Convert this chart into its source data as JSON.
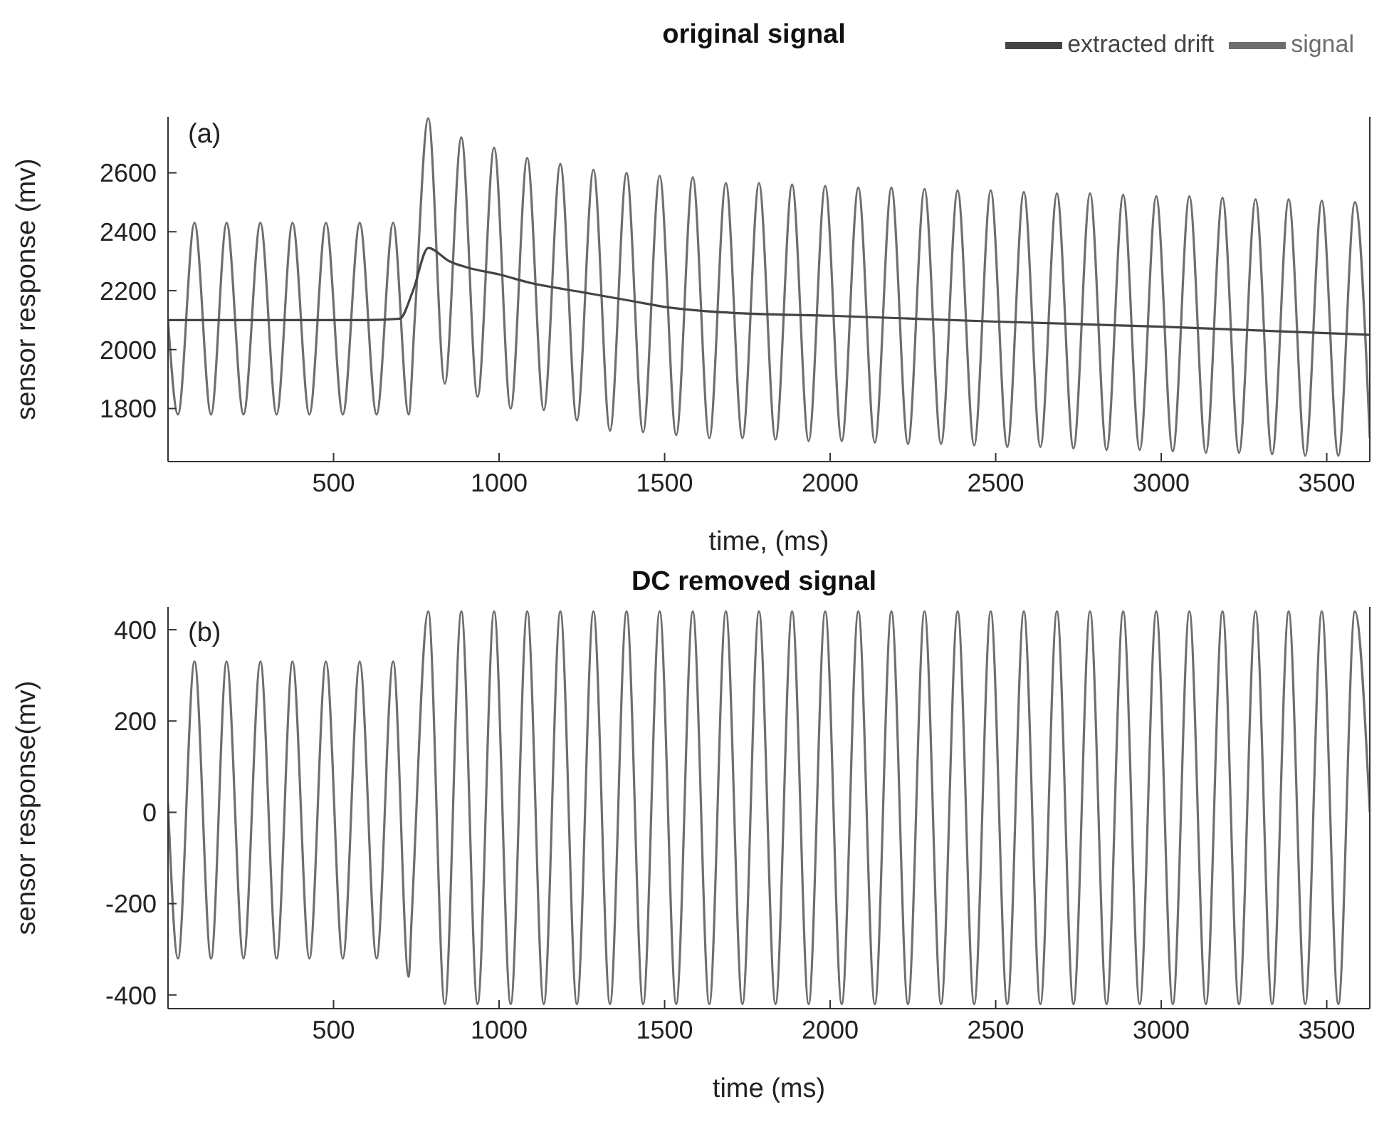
{
  "chart_data": [
    {
      "type": "line",
      "title": "original signal",
      "xlabel": "time, (ms)",
      "ylabel": "sensor response (mv)",
      "annotations": [
        "(a)"
      ],
      "xlim": [
        0,
        3630
      ],
      "xticks": [
        500,
        1000,
        1500,
        2000,
        2500,
        3000,
        3500
      ],
      "ylim": [
        1620,
        2790
      ],
      "yticks": [
        1800,
        2000,
        2200,
        2400,
        2600
      ],
      "legend": "top right",
      "marker": "none",
      "line_style": "solid",
      "series": [
        {
          "name": "signal",
          "color": "#6e6e6e",
          "x": [
            0,
            30,
            80,
            130,
            177,
            228,
            279,
            328,
            376,
            427,
            477,
            528,
            579,
            630,
            680,
            727,
            745,
            786,
            836,
            886,
            935,
            985,
            1035,
            1085,
            1135,
            1185,
            1235,
            1285,
            1335,
            1385,
            1435,
            1485,
            1535,
            1585,
            1635,
            1685,
            1735,
            1785,
            1835,
            1885,
            1935,
            1985,
            2035,
            2085,
            2135,
            2185,
            2235,
            2285,
            2335,
            2385,
            2435,
            2485,
            2535,
            2585,
            2635,
            2685,
            2735,
            2785,
            2835,
            2885,
            2935,
            2985,
            3035,
            3085,
            3135,
            3185,
            3235,
            3285,
            3335,
            3385,
            3435,
            3485,
            3535,
            3585,
            3630
          ],
          "values": [
            2100,
            1780,
            2430,
            1780,
            2430,
            1780,
            2430,
            1780,
            2430,
            1780,
            2430,
            1780,
            2430,
            1780,
            2430,
            1780,
            2100,
            2785,
            1885,
            2720,
            1840,
            2685,
            1800,
            2650,
            1795,
            2630,
            1760,
            2610,
            1725,
            2600,
            1720,
            2590,
            1710,
            2585,
            1700,
            2565,
            1700,
            2565,
            1695,
            2560,
            1690,
            2555,
            1690,
            2550,
            1685,
            2550,
            1680,
            2545,
            1680,
            2540,
            1675,
            2540,
            1670,
            2535,
            1670,
            2530,
            1665,
            2530,
            1660,
            2525,
            1660,
            2520,
            1655,
            2520,
            1650,
            2515,
            1650,
            2510,
            1645,
            2510,
            1640,
            2505,
            1640,
            2500,
            1700
          ]
        },
        {
          "name": "extracted drift",
          "color": "#444444",
          "x": [
            0,
            200,
            400,
            600,
            700,
            740,
            786,
            850,
            900,
            1000,
            1100,
            1250,
            1400,
            1500,
            1700,
            2000,
            2500,
            3000,
            3630
          ],
          "values": [
            2100,
            2100,
            2100,
            2100,
            2105,
            2200,
            2345,
            2300,
            2280,
            2255,
            2225,
            2195,
            2165,
            2145,
            2125,
            2115,
            2095,
            2078,
            2050
          ]
        }
      ]
    },
    {
      "type": "line",
      "title": "DC removed signal",
      "xlabel": "time (ms)",
      "ylabel": "sensor response(mv)",
      "annotations": [
        "(b)"
      ],
      "xlim": [
        0,
        3630
      ],
      "xticks": [
        500,
        1000,
        1500,
        2000,
        2500,
        3000,
        3500
      ],
      "ylim": [
        -430,
        450
      ],
      "yticks": [
        -400,
        -200,
        0,
        200,
        400
      ],
      "legend": false,
      "marker": "none",
      "line_style": "solid",
      "series": [
        {
          "color": "#6e6e6e",
          "x": [
            0,
            30,
            80,
            130,
            177,
            228,
            279,
            328,
            376,
            427,
            477,
            528,
            579,
            630,
            680,
            727,
            736,
            786,
            836,
            886,
            935,
            985,
            1035,
            1085,
            1135,
            1185,
            1235,
            1285,
            1335,
            1385,
            1435,
            1485,
            1535,
            1585,
            1635,
            1685,
            1735,
            1785,
            1835,
            1885,
            1935,
            1985,
            2035,
            2085,
            2135,
            2185,
            2235,
            2285,
            2335,
            2385,
            2435,
            2485,
            2535,
            2585,
            2635,
            2685,
            2735,
            2785,
            2835,
            2885,
            2935,
            2985,
            3035,
            3085,
            3135,
            3185,
            3235,
            3285,
            3335,
            3385,
            3435,
            3485,
            3535,
            3585,
            3630
          ],
          "values": [
            20,
            -320,
            330,
            -320,
            330,
            -320,
            330,
            -320,
            330,
            -320,
            330,
            -320,
            330,
            -320,
            330,
            -360,
            -230,
            440,
            -420,
            440,
            -420,
            440,
            -420,
            440,
            -420,
            440,
            -420,
            440,
            -420,
            440,
            -420,
            440,
            -420,
            440,
            -420,
            440,
            -420,
            440,
            -420,
            440,
            -420,
            440,
            -420,
            440,
            -420,
            440,
            -420,
            440,
            -420,
            440,
            -420,
            440,
            -420,
            440,
            -420,
            440,
            -420,
            440,
            -420,
            440,
            -420,
            440,
            -420,
            440,
            -420,
            440,
            -420,
            440,
            -420,
            440,
            -420,
            440,
            -420,
            440,
            0
          ]
        }
      ]
    }
  ]
}
